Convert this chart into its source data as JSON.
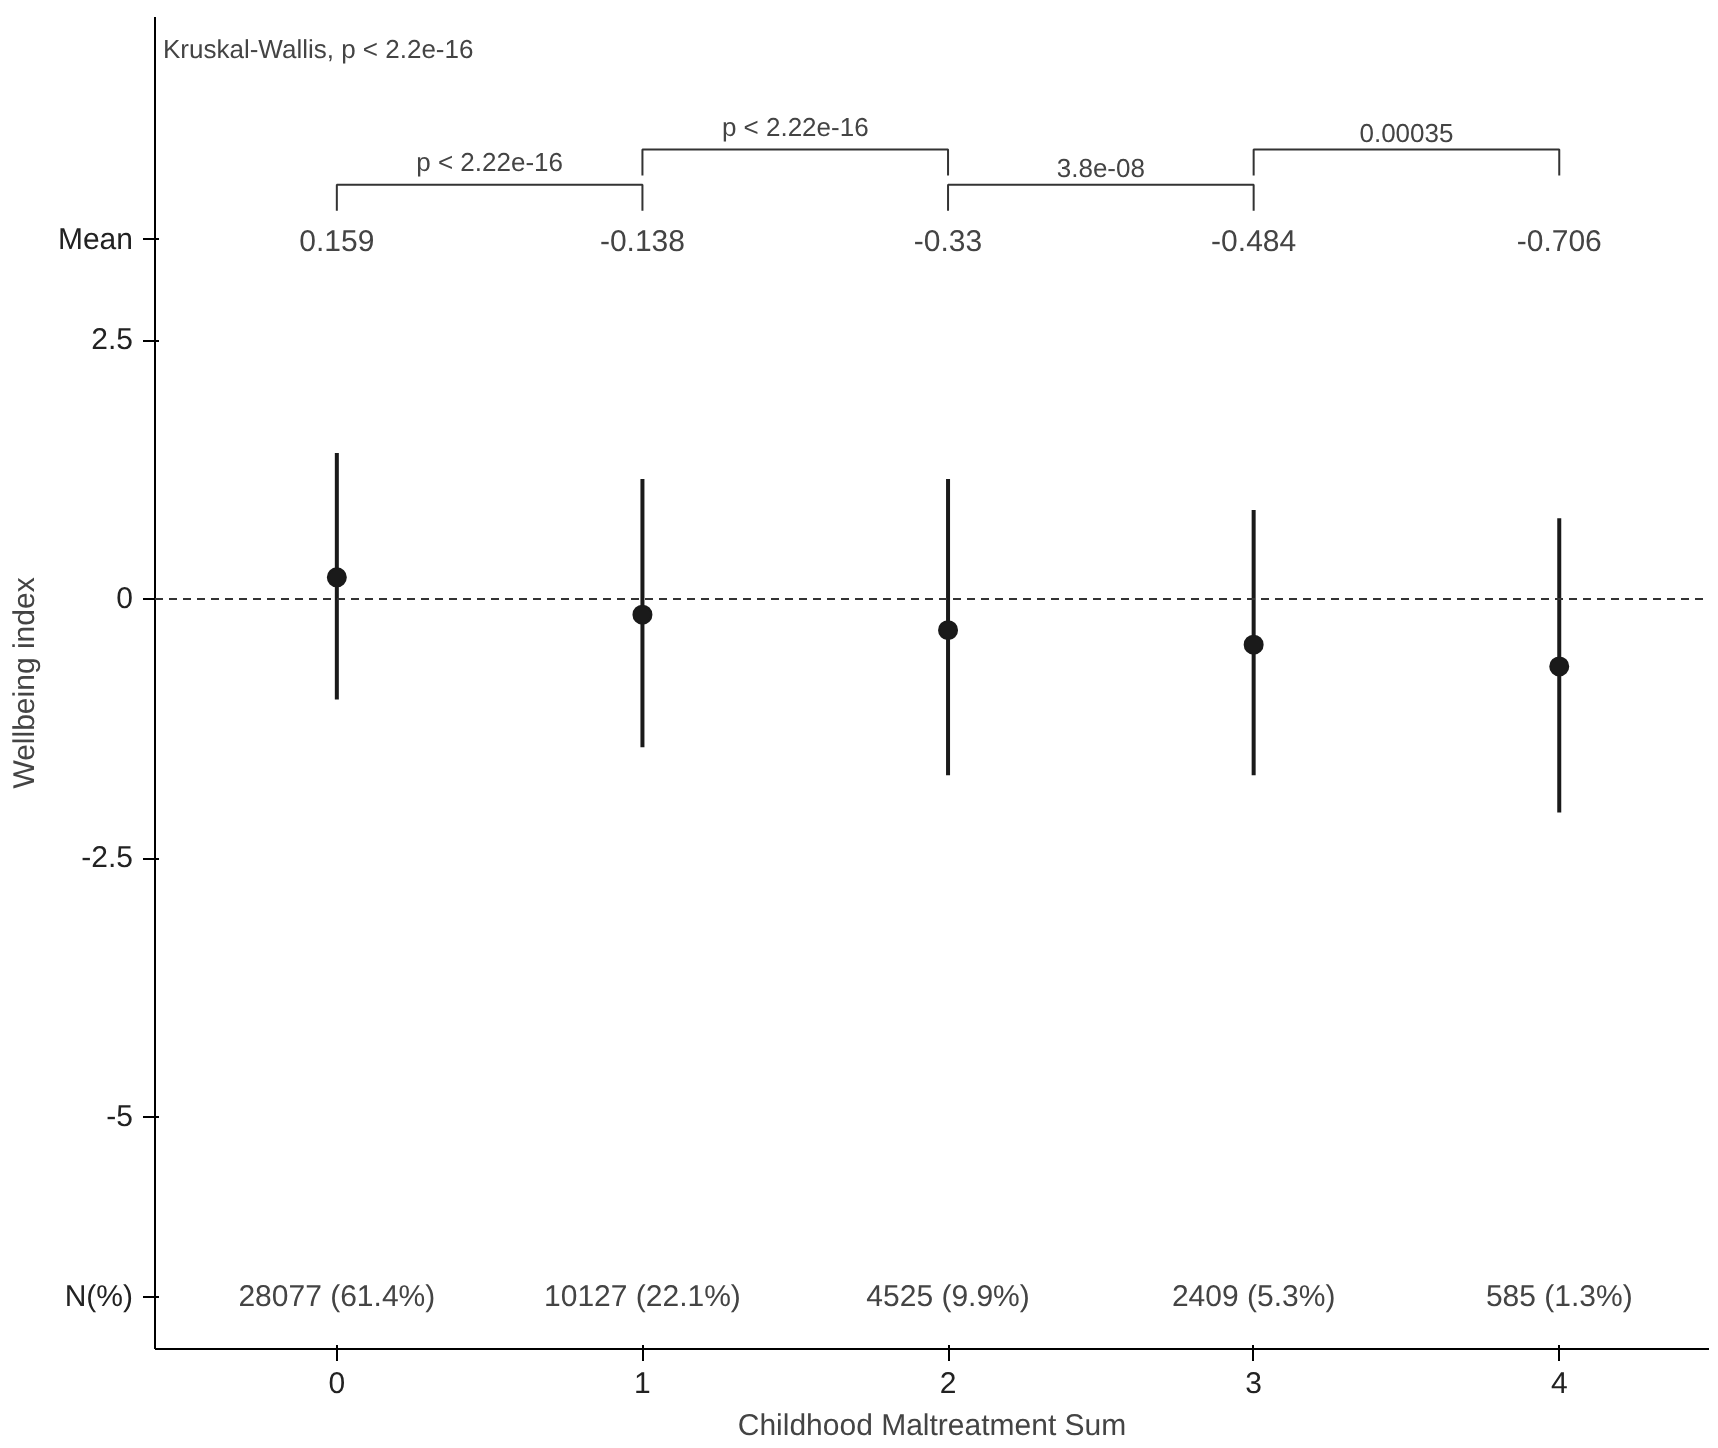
{
  "chart_data": {
    "type": "scatter",
    "xlabel": "Childhood Maltreatment Sum",
    "ylabel": "Wellbeing index",
    "x": [
      0,
      1,
      2,
      3,
      4
    ],
    "xlim": [
      -0.595,
      4.49
    ],
    "xticks": [
      0,
      1,
      2,
      3,
      4
    ],
    "ylim": [
      -7.24,
      5.62
    ],
    "yticks": [
      {
        "value": -6.74,
        "label": "N(%)"
      },
      -5,
      -2.5,
      0,
      2.5,
      {
        "value": 3.47,
        "label": "Mean"
      }
    ],
    "grid": false,
    "marker": "circle",
    "series": [
      {
        "color": "#1a1a1a",
        "values": [
          0.21,
          -0.15,
          -0.3,
          -0.44,
          -0.65
        ],
        "errors": [
          [
            -0.97,
            1.41
          ],
          [
            -1.43,
            1.16
          ],
          [
            -1.7,
            1.16
          ],
          [
            -1.7,
            0.86
          ],
          [
            -2.06,
            0.78
          ]
        ]
      }
    ],
    "ref_lines": [
      {
        "axis": "y",
        "value": 0,
        "line_style": "dashed",
        "color": "#333333"
      }
    ],
    "annotations": [
      "Kruskal-Wallis, p < 2.2e-16",
      "p < 2.22e-16",
      "p < 2.22e-16",
      "3.8e-08",
      "0.00035",
      "0.159",
      "-0.138",
      "-0.33",
      "-0.484",
      "-0.706",
      "28077 (61.4%)",
      "10127 (22.1%)",
      "4525 (9.9%)",
      "2409 (5.3%)",
      "585 (1.3%)"
    ]
  }
}
